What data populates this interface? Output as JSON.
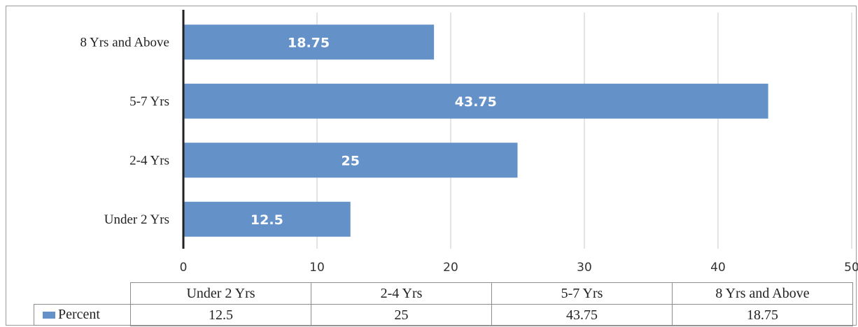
{
  "chart_data": {
    "type": "bar",
    "orientation": "horizontal",
    "categories": [
      "Under 2 Yrs",
      "2-4 Yrs",
      "5-7 Yrs",
      "8 Yrs and Above"
    ],
    "series": [
      {
        "name": "Percent",
        "values": [
          12.5,
          25,
          43.75,
          18.75
        ],
        "color": "#6591c9"
      }
    ],
    "data_labels": [
      "12.5",
      "25",
      "43.75",
      "18.75"
    ],
    "xlim": [
      0,
      50
    ],
    "xticks": [
      "0",
      "10",
      "20",
      "30",
      "40",
      "50"
    ],
    "grid": true,
    "legend": "in data table",
    "data_table": {
      "headers": [
        "Under 2 Yrs",
        "2-4 Yrs",
        "5-7 Yrs",
        "8 Yrs and Above"
      ],
      "row_label": "Percent",
      "values": [
        "12.5",
        "25",
        "43.75",
        "18.75"
      ]
    },
    "title": "",
    "xlabel": "",
    "ylabel": ""
  }
}
